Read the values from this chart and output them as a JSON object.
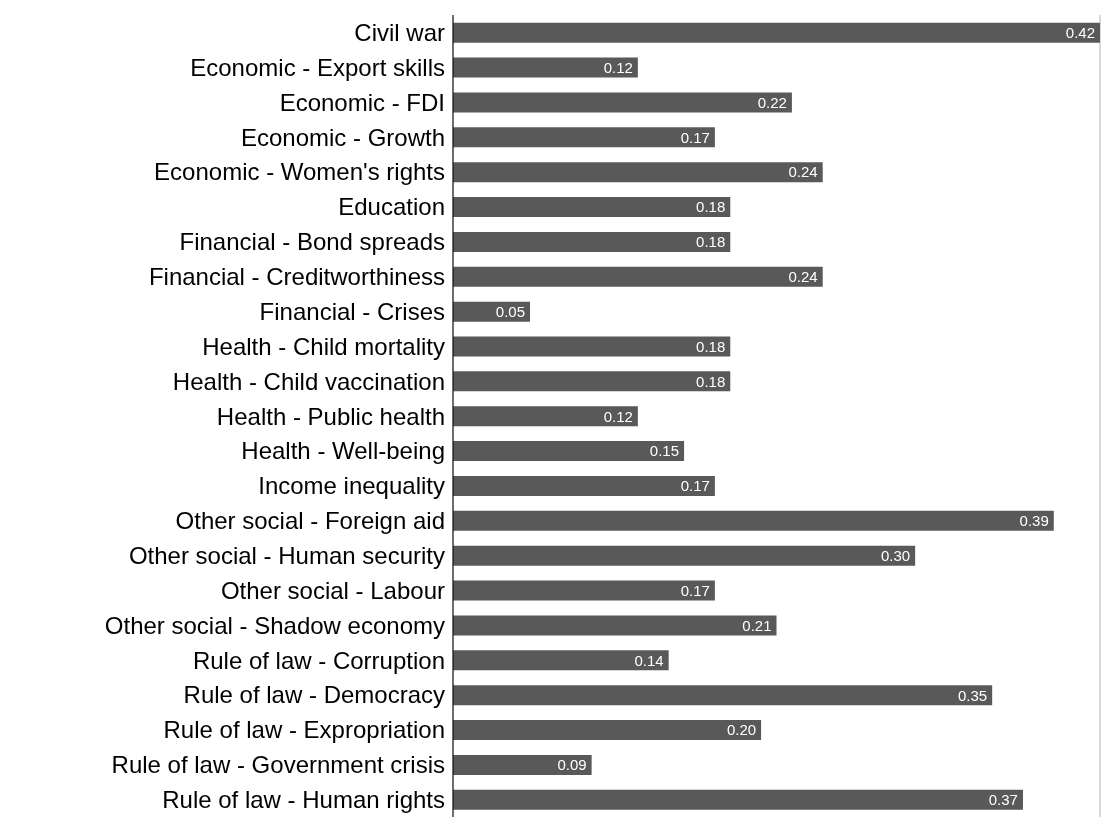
{
  "chart_data": {
    "type": "bar",
    "orientation": "horizontal",
    "categories": [
      "Civil war",
      "Economic - Export skills",
      "Economic - FDI",
      "Economic - Growth",
      "Economic - Women's rights",
      "Education",
      "Financial - Bond spreads",
      "Financial - Creditworthiness",
      "Financial - Crises",
      "Health - Child mortality",
      "Health - Child vaccination",
      "Health - Public health",
      "Health - Well-being",
      "Income inequality",
      "Other social - Foreign aid",
      "Other social - Human security",
      "Other social - Labour",
      "Other social - Shadow economy",
      "Rule of law - Corruption",
      "Rule of law - Democracy",
      "Rule of law - Expropriation",
      "Rule of law - Government crisis",
      "Rule of law - Human rights"
    ],
    "values": [
      0.42,
      0.12,
      0.22,
      0.17,
      0.24,
      0.18,
      0.18,
      0.24,
      0.05,
      0.18,
      0.18,
      0.12,
      0.15,
      0.17,
      0.39,
      0.3,
      0.17,
      0.21,
      0.14,
      0.35,
      0.2,
      0.09,
      0.37
    ],
    "value_labels": [
      "0.42",
      "0.12",
      "0.22",
      "0.17",
      "0.24",
      "0.18",
      "0.18",
      "0.24",
      "0.05",
      "0.18",
      "0.18",
      "0.12",
      "0.15",
      "0.17",
      "0.39",
      "0.30",
      "0.17",
      "0.21",
      "0.14",
      "0.35",
      "0.20",
      "0.09",
      "0.37"
    ],
    "color": "#595959",
    "xlim": [
      0,
      0.42
    ],
    "grid": "x",
    "tick_labels": "y"
  }
}
